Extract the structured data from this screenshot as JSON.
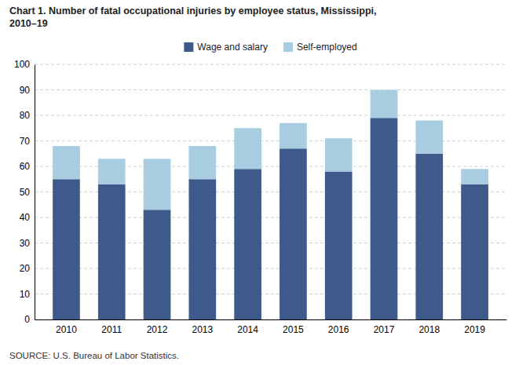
{
  "chart_data": {
    "type": "bar",
    "title": "Chart 1. Number of fatal occupational injuries by employee status, Mississippi,\n2010–19",
    "annotations": [
      "SOURCE: U.S. Bureau of Labor Statistics."
    ],
    "categories": [
      "2010",
      "2011",
      "2012",
      "2013",
      "2014",
      "2015",
      "2016",
      "2017",
      "2018",
      "2019"
    ],
    "series": [
      {
        "name": "Wage and salary",
        "color": "#3d5a8a",
        "values": [
          55,
          53,
          43,
          55,
          59,
          67,
          58,
          79,
          65,
          53
        ]
      },
      {
        "name": "Self-employed",
        "color": "#a8cce0",
        "values": [
          13,
          10,
          20,
          13,
          16,
          10,
          13,
          11,
          13,
          6
        ]
      }
    ],
    "stacked": true,
    "ylim": [
      0,
      100
    ],
    "yticks": [
      0,
      10,
      20,
      30,
      40,
      50,
      60,
      70,
      80,
      90,
      100
    ],
    "grid": true,
    "legend": "top"
  }
}
